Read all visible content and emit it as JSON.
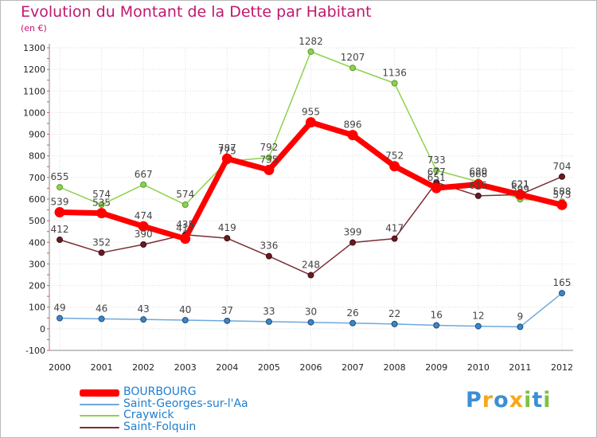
{
  "chart_data": {
    "type": "line",
    "title": "Evolution du Montant de la Dette par Habitant",
    "subtitle": "(en €)",
    "xlabel": "",
    "ylabel": "",
    "ylim": [
      -100,
      1300
    ],
    "yticks": [
      -100,
      0,
      100,
      200,
      300,
      400,
      500,
      600,
      700,
      800,
      900,
      1000,
      1100,
      1200,
      1300
    ],
    "categories": [
      "2000",
      "2001",
      "2002",
      "2003",
      "2004",
      "2005",
      "2006",
      "2007",
      "2008",
      "2009",
      "2010",
      "2011",
      "2012"
    ],
    "grid": true,
    "legend_position": "bottom-left",
    "series": [
      {
        "name": "BOURBOURG",
        "color": "#ff0000",
        "values": [
          539,
          535,
          474,
          417,
          787,
          735,
          955,
          896,
          752,
          651,
          668,
          621,
          573
        ]
      },
      {
        "name": "Saint-Georges-sur-l'Aa",
        "color": "#6fa8dc",
        "values": [
          49,
          46,
          43,
          40,
          37,
          33,
          30,
          26,
          22,
          16,
          12,
          9,
          165
        ]
      },
      {
        "name": "Craywick",
        "color": "#8fd14f",
        "values": [
          655,
          574,
          667,
          574,
          775,
          792,
          1282,
          1207,
          1136,
          733,
          680,
          599,
          588
        ]
      },
      {
        "name": "Saint-Folquin",
        "color": "#7b2c34",
        "values": [
          412,
          352,
          390,
          435,
          419,
          336,
          248,
          399,
          417,
          677,
          615,
          621,
          704
        ]
      }
    ]
  },
  "logo": {
    "letters": [
      {
        "char": "P",
        "color": "#3c8fd6"
      },
      {
        "char": "r",
        "color": "#f7a81b"
      },
      {
        "char": "o",
        "color": "#3c8fd6"
      },
      {
        "char": "x",
        "color": "#f7a81b"
      },
      {
        "char": "i",
        "color": "#7cc242"
      },
      {
        "char": "t",
        "color": "#3c8fd6"
      },
      {
        "char": "i",
        "color": "#7cc242"
      }
    ]
  }
}
